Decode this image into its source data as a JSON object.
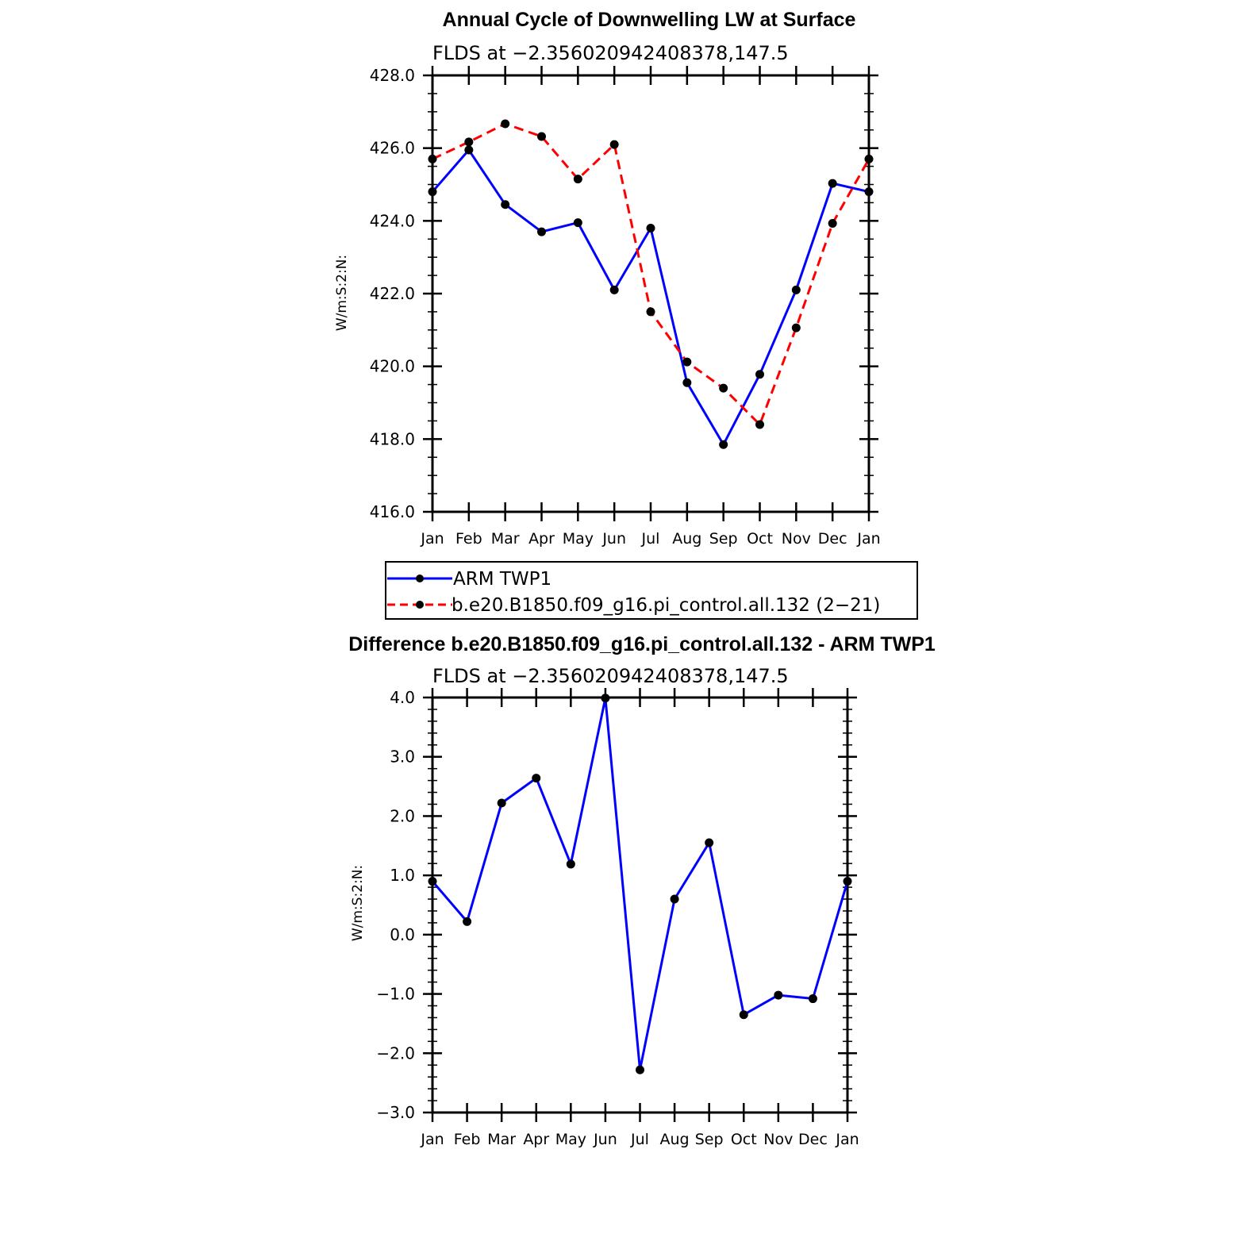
{
  "chart_data": [
    {
      "type": "line",
      "title": "Annual Cycle of Downwelling LW at Surface",
      "subtitle": "FLDS at −2.356020942408378,147.5",
      "xlabel": "",
      "ylabel": "W/m:S:2:N:",
      "categories": [
        "Jan",
        "Feb",
        "Mar",
        "Apr",
        "May",
        "Jun",
        "Jul",
        "Aug",
        "Sep",
        "Oct",
        "Nov",
        "Dec",
        "Jan"
      ],
      "ylim": [
        416.0,
        428.0
      ],
      "yticks": [
        "416.0",
        "418.0",
        "420.0",
        "422.0",
        "424.0",
        "426.0",
        "428.0"
      ],
      "series": [
        {
          "name": "ARM TWP1",
          "color": "#0000ff",
          "dash": "solid",
          "values": [
            424.8,
            425.95,
            424.45,
            423.7,
            423.95,
            422.1,
            423.8,
            419.55,
            417.85,
            419.78,
            422.1,
            425.03,
            424.8
          ]
        },
        {
          "name": "b.e20.B1850.f09_g16.pi_control.all.132 (2−21)",
          "color": "#ff0000",
          "dash": "dashed",
          "values": [
            425.7,
            426.17,
            426.67,
            426.32,
            425.15,
            426.1,
            421.5,
            420.12,
            419.4,
            418.4,
            421.06,
            423.93,
            425.7
          ]
        }
      ],
      "legend": "below"
    },
    {
      "type": "line",
      "title": "Difference b.e20.B1850.f09_g16.pi_control.all.132 - ARM TWP1",
      "subtitle": "FLDS at −2.356020942408378,147.5",
      "xlabel": "",
      "ylabel": "W/m:S:2:N:",
      "categories": [
        "Jan",
        "Feb",
        "Mar",
        "Apr",
        "May",
        "Jun",
        "Jul",
        "Aug",
        "Sep",
        "Oct",
        "Nov",
        "Dec",
        "Jan"
      ],
      "ylim": [
        -3.0,
        4.0
      ],
      "yticks": [
        "−3.0",
        "−2.0",
        "−1.0",
        "0.0",
        "1.0",
        "2.0",
        "3.0",
        "4.0"
      ],
      "series": [
        {
          "name": "Difference",
          "color": "#0000ff",
          "dash": "solid",
          "values": [
            0.9,
            0.22,
            2.22,
            2.64,
            1.19,
            3.99,
            -2.28,
            0.6,
            1.55,
            -1.35,
            -1.02,
            -1.08,
            0.9
          ]
        }
      ]
    }
  ]
}
